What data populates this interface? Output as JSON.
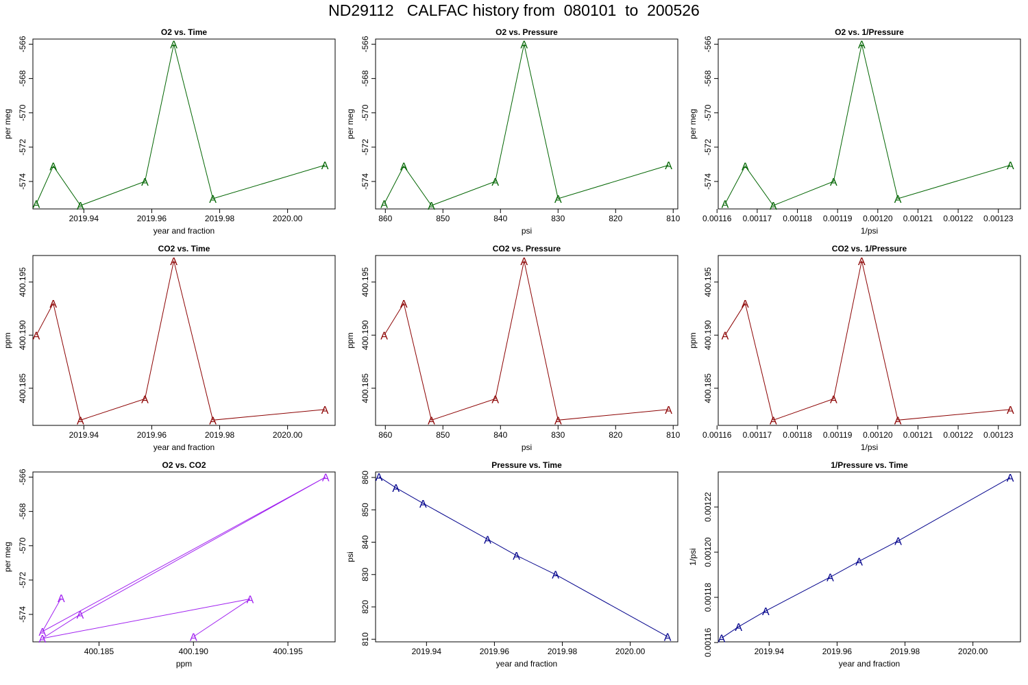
{
  "title": "ND29112   CALFAC history from  080101  to  200526",
  "chart_data": [
    {
      "type": "line",
      "title": "O2 vs. Time",
      "xlabel": "year and fraction",
      "ylabel": "per meg",
      "color": "#006400",
      "marker": "A",
      "x": [
        2019.926,
        2019.931,
        2019.939,
        2019.958,
        2019.9665,
        2019.978,
        2020.011
      ],
      "y": [
        -575.3,
        -573.1,
        -575.4,
        -574.0,
        -566.0,
        -575.0,
        -573.05
      ],
      "xlim": [
        2019.925,
        2020.014
      ],
      "ylim": [
        -575.6,
        -565.7
      ],
      "xticks": [
        2019.94,
        2019.96,
        2019.98,
        2020.0
      ],
      "xticklabels": [
        "2019.94",
        "2019.96",
        "2019.98",
        "2020.00"
      ],
      "yticks": [
        -566,
        -568,
        -570,
        -572,
        -574
      ],
      "yticklabels": [
        "-566",
        "-568",
        "-570",
        "-572",
        "-574"
      ]
    },
    {
      "type": "line",
      "title": "O2 vs. Pressure",
      "xlabel": "psi",
      "ylabel": "per meg",
      "color": "#006400",
      "marker": "A",
      "x": [
        860.2,
        856.8,
        852.0,
        840.9,
        835.9,
        830.0,
        810.8
      ],
      "y": [
        -575.3,
        -573.1,
        -575.4,
        -574.0,
        -566.0,
        -575.0,
        -573.05
      ],
      "xlim": [
        861.7,
        809.2
      ],
      "ylim": [
        -575.6,
        -565.7
      ],
      "xticks": [
        860,
        850,
        840,
        830,
        820,
        810
      ],
      "xticklabels": [
        "860",
        "850",
        "840",
        "830",
        "820",
        "810"
      ],
      "yticks": [
        -566,
        -568,
        -570,
        -572,
        -574
      ],
      "yticklabels": [
        "-566",
        "-568",
        "-570",
        "-572",
        "-574"
      ]
    },
    {
      "type": "line",
      "title": "O2 vs. 1/Pressure",
      "xlabel": "1/psi",
      "ylabel": "per meg",
      "color": "#006400",
      "marker": "A",
      "x": [
        0.001162,
        0.001167,
        0.001174,
        0.001189,
        0.001196,
        0.001205,
        0.001233
      ],
      "y": [
        -575.3,
        -573.1,
        -575.4,
        -574.0,
        -566.0,
        -575.0,
        -573.05
      ],
      "xlim": [
        0.0011603,
        0.0012355
      ],
      "ylim": [
        -575.6,
        -565.7
      ],
      "xticks": [
        0.00116,
        0.00117,
        0.00118,
        0.00119,
        0.0012,
        0.00121,
        0.00122,
        0.00123
      ],
      "xticklabels": [
        "0.00116",
        "0.00117",
        "0.00118",
        "0.00119",
        "0.00120",
        "0.00121",
        "0.00122",
        "0.00123"
      ],
      "yticks": [
        -566,
        -568,
        -570,
        -572,
        -574
      ],
      "yticklabels": [
        "-566",
        "-568",
        "-570",
        "-572",
        "-574"
      ]
    },
    {
      "type": "line",
      "title": "CO2 vs. Time",
      "xlabel": "year and fraction",
      "ylabel": "ppm",
      "color": "#8b0000",
      "marker": "A",
      "x": [
        2019.926,
        2019.931,
        2019.939,
        2019.958,
        2019.9665,
        2019.978,
        2020.011
      ],
      "y": [
        400.19,
        400.193,
        400.182,
        400.184,
        400.197,
        400.182,
        400.183
      ],
      "xlim": [
        2019.925,
        2020.014
      ],
      "ylim": [
        400.1815,
        400.1975
      ],
      "xticks": [
        2019.94,
        2019.96,
        2019.98,
        2020.0
      ],
      "xticklabels": [
        "2019.94",
        "2019.96",
        "2019.98",
        "2020.00"
      ],
      "yticks": [
        400.185,
        400.19,
        400.195
      ],
      "yticklabels": [
        "400.185",
        "400.190",
        "400.195"
      ]
    },
    {
      "type": "line",
      "title": "CO2 vs. Pressure",
      "xlabel": "psi",
      "ylabel": "ppm",
      "color": "#8b0000",
      "marker": "A",
      "x": [
        860.2,
        856.8,
        852.0,
        840.9,
        835.9,
        830.0,
        810.8
      ],
      "y": [
        400.19,
        400.193,
        400.182,
        400.184,
        400.197,
        400.182,
        400.183
      ],
      "xlim": [
        861.7,
        809.2
      ],
      "ylim": [
        400.1815,
        400.1975
      ],
      "xticks": [
        860,
        850,
        840,
        830,
        820,
        810
      ],
      "xticklabels": [
        "860",
        "850",
        "840",
        "830",
        "820",
        "810"
      ],
      "yticks": [
        400.185,
        400.19,
        400.195
      ],
      "yticklabels": [
        "400.185",
        "400.190",
        "400.195"
      ]
    },
    {
      "type": "line",
      "title": "CO2 vs. 1/Pressure",
      "xlabel": "1/psi",
      "ylabel": "ppm",
      "color": "#8b0000",
      "marker": "A",
      "x": [
        0.001162,
        0.001167,
        0.001174,
        0.001189,
        0.001196,
        0.001205,
        0.001233
      ],
      "y": [
        400.19,
        400.193,
        400.182,
        400.184,
        400.197,
        400.182,
        400.183
      ],
      "xlim": [
        0.0011603,
        0.0012355
      ],
      "ylim": [
        400.1815,
        400.1975
      ],
      "xticks": [
        0.00116,
        0.00117,
        0.00118,
        0.00119,
        0.0012,
        0.00121,
        0.00122,
        0.00123
      ],
      "xticklabels": [
        "0.00116",
        "0.00117",
        "0.00118",
        "0.00119",
        "0.00120",
        "0.00121",
        "0.00122",
        "0.00123"
      ],
      "yticks": [
        400.185,
        400.19,
        400.195
      ],
      "yticklabels": [
        "400.185",
        "400.190",
        "400.195"
      ]
    },
    {
      "type": "line",
      "title": "O2 vs. CO2",
      "xlabel": "ppm",
      "ylabel": "per meg",
      "color": "#a020f0",
      "marker": "A",
      "x": [
        400.19,
        400.193,
        400.182,
        400.184,
        400.197,
        400.182,
        400.183
      ],
      "y": [
        -575.3,
        -573.1,
        -575.4,
        -574.0,
        -566.0,
        -575.0,
        -573.05
      ],
      "xlim": [
        400.1815,
        400.1975
      ],
      "ylim": [
        -575.6,
        -565.7
      ],
      "xticks": [
        400.185,
        400.19,
        400.195
      ],
      "xticklabels": [
        "400.185",
        "400.190",
        "400.195"
      ],
      "yticks": [
        -566,
        -568,
        -570,
        -572,
        -574
      ],
      "yticklabels": [
        "-566",
        "-568",
        "-570",
        "-572",
        "-574"
      ]
    },
    {
      "type": "line",
      "title": "Pressure vs. Time",
      "xlabel": "year and fraction",
      "ylabel": "psi",
      "color": "#00008b",
      "marker": "A",
      "x": [
        2019.926,
        2019.931,
        2019.939,
        2019.958,
        2019.9665,
        2019.978,
        2020.011
      ],
      "y": [
        860.2,
        856.8,
        852.0,
        840.9,
        835.9,
        830.0,
        810.8
      ],
      "xlim": [
        2019.925,
        2020.014
      ],
      "ylim": [
        809.2,
        861.7
      ],
      "xticks": [
        2019.94,
        2019.96,
        2019.98,
        2020.0
      ],
      "xticklabels": [
        "2019.94",
        "2019.96",
        "2019.98",
        "2020.00"
      ],
      "yticks": [
        810,
        820,
        830,
        840,
        850,
        860
      ],
      "yticklabels": [
        "810",
        "820",
        "830",
        "840",
        "850",
        "860"
      ]
    },
    {
      "type": "line",
      "title": "1/Pressure vs. Time",
      "xlabel": "year and fraction",
      "ylabel": "1/psi",
      "color": "#00008b",
      "marker": "A",
      "x": [
        2019.926,
        2019.931,
        2019.939,
        2019.958,
        2019.9665,
        2019.978,
        2020.011
      ],
      "y": [
        0.001162,
        0.001167,
        0.001174,
        0.001189,
        0.001196,
        0.001205,
        0.001233
      ],
      "xlim": [
        2019.925,
        2020.014
      ],
      "ylim": [
        0.0011603,
        0.0012355
      ],
      "xticks": [
        2019.94,
        2019.96,
        2019.98,
        2020.0
      ],
      "xticklabels": [
        "2019.94",
        "2019.96",
        "2019.98",
        "2020.00"
      ],
      "yticks": [
        0.00116,
        0.00118,
        0.0012,
        0.00122
      ],
      "yticklabels": [
        "0.00116",
        "0.00118",
        "0.00120",
        "0.00122"
      ]
    }
  ]
}
